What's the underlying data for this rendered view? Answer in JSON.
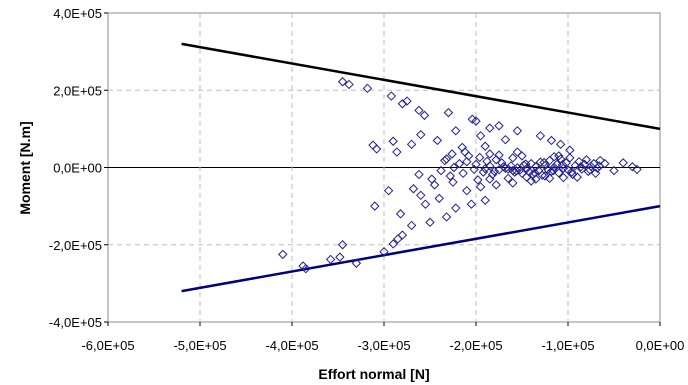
{
  "chart_data": {
    "type": "scatter",
    "title": "",
    "xlabel": "Effort normal [N]",
    "ylabel": "Moment [N.m]",
    "xlim": [
      -600000,
      0
    ],
    "ylim": [
      -400000,
      400000
    ],
    "grid": true,
    "x_ticks": [
      {
        "value": -600000,
        "label": "-6,0E+05"
      },
      {
        "value": -500000,
        "label": "-5,0E+05"
      },
      {
        "value": -400000,
        "label": "-4,0E+05"
      },
      {
        "value": -300000,
        "label": "-3,0E+05"
      },
      {
        "value": -200000,
        "label": "-2,0E+05"
      },
      {
        "value": -100000,
        "label": "-1,0E+05"
      },
      {
        "value": 0,
        "label": "0,0E+00"
      }
    ],
    "y_ticks": [
      {
        "value": 400000,
        "label": "4,0E+05"
      },
      {
        "value": 200000,
        "label": "2,0E+05"
      },
      {
        "value": 0,
        "label": "0,0E+00"
      },
      {
        "value": -200000,
        "label": "-2,0E+05"
      },
      {
        "value": -400000,
        "label": "-4,0E+05"
      }
    ],
    "colors": {
      "points": "#1f1f8f",
      "upper_line": "#000000",
      "lower_line": "#000080",
      "grid": "#bdbdbd",
      "zero_line": "#000000"
    },
    "lines": [
      {
        "points": [
          [
            -520000,
            320000
          ],
          [
            0,
            100000
          ]
        ],
        "color": "#000000"
      },
      {
        "points": [
          [
            -520000,
            -320000
          ],
          [
            0,
            -100000
          ]
        ],
        "color": "#000080"
      }
    ],
    "series": [
      {
        "points": [
          [
            -345000,
            222000
          ],
          [
            -338000,
            215000
          ],
          [
            -318000,
            205000
          ],
          [
            -292000,
            185000
          ],
          [
            -280000,
            165000
          ],
          [
            -275000,
            172000
          ],
          [
            -262000,
            148000
          ],
          [
            -256000,
            135000
          ],
          [
            -230000,
            142000
          ],
          [
            -204000,
            125000
          ],
          [
            -200000,
            120000
          ],
          [
            -185000,
            102000
          ],
          [
            -175000,
            108000
          ],
          [
            -155000,
            95000
          ],
          [
            -130000,
            82000
          ],
          [
            -118000,
            70000
          ],
          [
            -108000,
            60000
          ],
          [
            -98000,
            45000
          ],
          [
            -290000,
            68000
          ],
          [
            -312000,
            58000
          ],
          [
            -308000,
            48000
          ],
          [
            -286000,
            40000
          ],
          [
            -260000,
            85000
          ],
          [
            -222000,
            95000
          ],
          [
            -195000,
            82000
          ],
          [
            -242000,
            70000
          ],
          [
            -215000,
            52000
          ],
          [
            -270000,
            60000
          ],
          [
            -168000,
            72000
          ],
          [
            -190000,
            55000
          ],
          [
            -155000,
            40000
          ],
          [
            -110000,
            30000
          ],
          [
            -80000,
            20000
          ],
          [
            -60000,
            10000
          ],
          [
            -40000,
            12000
          ],
          [
            -25000,
            -5000
          ],
          [
            -30000,
            2000
          ],
          [
            -50000,
            -8000
          ],
          [
            -70000,
            -15000
          ],
          [
            -90000,
            -25000
          ],
          [
            -345000,
            -200000
          ],
          [
            -348000,
            -232000
          ],
          [
            -330000,
            -248000
          ],
          [
            -300000,
            -218000
          ],
          [
            -290000,
            -198000
          ],
          [
            -285000,
            -185000
          ],
          [
            -280000,
            -175000
          ],
          [
            -270000,
            -150000
          ],
          [
            -250000,
            -142000
          ],
          [
            -232000,
            -128000
          ],
          [
            -222000,
            -105000
          ],
          [
            -205000,
            -95000
          ],
          [
            -190000,
            -85000
          ],
          [
            -240000,
            -80000
          ],
          [
            -260000,
            -72000
          ],
          [
            -295000,
            -60000
          ],
          [
            -310000,
            -100000
          ],
          [
            -282000,
            -120000
          ],
          [
            -255000,
            -95000
          ],
          [
            -268000,
            -55000
          ],
          [
            -245000,
            -45000
          ],
          [
            -225000,
            -38000
          ],
          [
            -195000,
            -50000
          ],
          [
            -178000,
            -45000
          ],
          [
            -160000,
            -40000
          ],
          [
            -140000,
            -35000
          ],
          [
            -120000,
            -28000
          ],
          [
            -210000,
            -60000
          ],
          [
            -185000,
            -30000
          ],
          [
            -385000,
            -262000
          ],
          [
            -388000,
            -255000
          ],
          [
            -410000,
            -225000
          ],
          [
            -358000,
            -238000
          ],
          [
            -248000,
            -30000
          ],
          [
            -262000,
            -18000
          ],
          [
            -238000,
            -8000
          ],
          [
            -232000,
            22000
          ],
          [
            -210000,
            15000
          ],
          [
            -200000,
            8000
          ],
          [
            -190000,
            -3000
          ],
          [
            -185000,
            4000
          ],
          [
            -180000,
            -10000
          ],
          [
            -175000,
            -6000
          ],
          [
            -170000,
            2000
          ],
          [
            -165000,
            -4000
          ],
          [
            -160000,
            -8000
          ],
          [
            -158000,
            -12000
          ],
          [
            -155000,
            -1000
          ],
          [
            -152000,
            -6000
          ],
          [
            -150000,
            -15000
          ],
          [
            -148000,
            6000
          ],
          [
            -145000,
            -3000
          ],
          [
            -142000,
            -12000
          ],
          [
            -140000,
            10000
          ],
          [
            -138000,
            -18000
          ],
          [
            -135000,
            2000
          ],
          [
            -132000,
            -8000
          ],
          [
            -130000,
            14000
          ],
          [
            -128000,
            -20000
          ],
          [
            -125000,
            5000
          ],
          [
            -122000,
            -5000
          ],
          [
            -120000,
            18000
          ],
          [
            -118000,
            -10000
          ],
          [
            -115000,
            0
          ],
          [
            -112000,
            8000
          ],
          [
            -110000,
            -14000
          ],
          [
            -108000,
            22000
          ],
          [
            -105000,
            -2000
          ],
          [
            -102000,
            12000
          ],
          [
            -100000,
            -6000
          ],
          [
            -98000,
            25000
          ],
          [
            -95000,
            -18000
          ],
          [
            -92000,
            5000
          ],
          [
            -88000,
            15000
          ],
          [
            -85000,
            -4000
          ],
          [
            -82000,
            8000
          ],
          [
            -78000,
            -10000
          ],
          [
            -75000,
            3000
          ],
          [
            -72000,
            10000
          ],
          [
            -68000,
            -2000
          ],
          [
            -65000,
            18000
          ],
          [
            -172000,
            12000
          ],
          [
            -178000,
            20000
          ],
          [
            -182000,
            -18000
          ],
          [
            -188000,
            16000
          ],
          [
            -192000,
            -12000
          ],
          [
            -196000,
            26000
          ],
          [
            -202000,
            -5000
          ],
          [
            -208000,
            30000
          ],
          [
            -214000,
            -15000
          ],
          [
            -218000,
            10000
          ],
          [
            -224000,
            0
          ],
          [
            -228000,
            -22000
          ],
          [
            -234000,
            18000
          ],
          [
            -160000,
            25000
          ],
          [
            -150000,
            30000
          ],
          [
            -145000,
            -25000
          ],
          [
            -135000,
            -30000
          ],
          [
            -125000,
            -22000
          ],
          [
            -115000,
            28000
          ],
          [
            -105000,
            -26000
          ],
          [
            -165000,
            -28000
          ],
          [
            -175000,
            32000
          ],
          [
            -185000,
            35000
          ],
          [
            -198000,
            -32000
          ],
          [
            -212000,
            40000
          ],
          [
            -226000,
            35000
          ],
          [
            -168000,
            -2000
          ],
          [
            -162000,
            4000
          ],
          [
            -156000,
            -9000
          ],
          [
            -146000,
            9000
          ],
          [
            -136000,
            -14000
          ],
          [
            -126000,
            13000
          ],
          [
            -116000,
            -8000
          ],
          [
            -106000,
            7000
          ],
          [
            -96000,
            -12000
          ],
          [
            -86000,
            2000
          ],
          [
            -76000,
            -6000
          ],
          [
            -66000,
            4000
          ]
        ]
      }
    ]
  }
}
